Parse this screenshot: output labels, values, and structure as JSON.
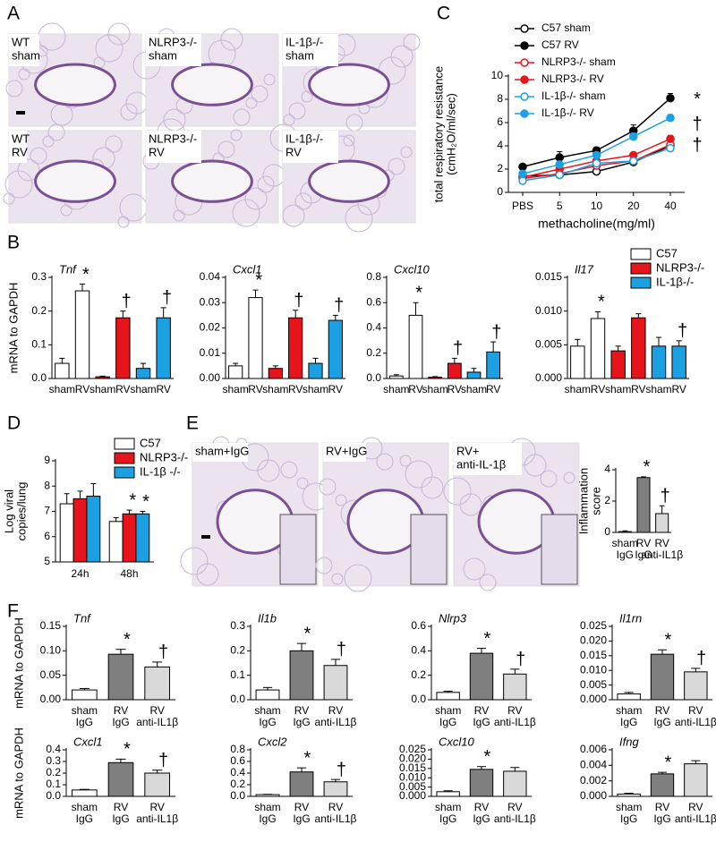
{
  "panel_labels": [
    "A",
    "B",
    "C",
    "D",
    "E",
    "F"
  ],
  "histology_A": [
    [
      "WT",
      "sham"
    ],
    [
      "NLRP3-/-",
      "sham"
    ],
    [
      "IL-1β-/-",
      "sham"
    ],
    [
      "WT",
      "RV"
    ],
    [
      "NLRP3-/-",
      "RV"
    ],
    [
      "IL-1β-/-",
      "RV"
    ]
  ],
  "histology_E": [
    [
      "sham+IgG"
    ],
    [
      "RV+IgG"
    ],
    [
      "RV+",
      "anti-IL-1β"
    ]
  ],
  "chart_data": [
    {
      "type": "line",
      "xlabel": "methacholine(mg/ml)",
      "ylabel": [
        "total respiratory resistance",
        "(cmH₂O/ml/sec)"
      ],
      "categories": [
        "PBS",
        "5",
        "10",
        "20",
        "40"
      ],
      "ylim": [
        0,
        10
      ],
      "yticks": [
        0,
        2,
        4,
        6,
        8,
        10
      ],
      "series": [
        {
          "name": "C57 sham",
          "color": "#000000",
          "filled": false,
          "values": [
            1.4,
            1.5,
            1.8,
            2.6,
            4.0
          ],
          "errors": [
            0.1,
            0.1,
            0.1,
            0.2,
            0.2
          ]
        },
        {
          "name": "C57 RV",
          "color": "#000000",
          "filled": true,
          "values": [
            2.2,
            3.0,
            3.6,
            5.3,
            8.1
          ],
          "errors": [
            0.1,
            0.5,
            0.3,
            0.5,
            0.4
          ],
          "end_label": "*"
        },
        {
          "name": "NLRP3-/- sham",
          "color": "#e8141b",
          "filled": false,
          "values": [
            1.2,
            1.6,
            2.3,
            2.7,
            4.1
          ],
          "errors": [
            0.1,
            0.1,
            0.2,
            0.2,
            0.2
          ]
        },
        {
          "name": "NLRP3-/- RV",
          "color": "#e8141b",
          "filled": true,
          "values": [
            1.3,
            2.0,
            2.7,
            3.2,
            4.6
          ],
          "errors": [
            0.1,
            0.2,
            0.2,
            0.2,
            0.3
          ],
          "end_label": "†"
        },
        {
          "name": "IL-1β-/- sham",
          "color": "#1ba1e2",
          "filled": false,
          "values": [
            1.0,
            1.5,
            2.5,
            2.7,
            3.8
          ],
          "errors": [
            0.1,
            0.1,
            0.2,
            0.2,
            0.2
          ]
        },
        {
          "name": "IL-1β-/- RV",
          "color": "#1ba1e2",
          "filled": true,
          "values": [
            1.6,
            2.4,
            3.2,
            4.8,
            6.4
          ],
          "errors": [
            0.1,
            0.2,
            0.2,
            0.3,
            0.3
          ],
          "end_label": "†"
        }
      ]
    },
    {
      "type": "bar",
      "title": "Tnf",
      "ylabel": "mRNA to GAPDH",
      "categories": [
        "sham",
        "RV",
        "sham",
        "RV",
        "sham",
        "RV"
      ],
      "colors": [
        "#ffffff",
        "#ffffff",
        "#e8141b",
        "#e8141b",
        "#1ba1e2",
        "#1ba1e2"
      ],
      "values": [
        0.045,
        0.26,
        0.005,
        0.18,
        0.03,
        0.18
      ],
      "errors": [
        0.015,
        0.02,
        0.002,
        0.02,
        0.015,
        0.03
      ],
      "bar_labels": [
        null,
        "*",
        null,
        "†",
        null,
        "†"
      ],
      "ylim": [
        0,
        0.3
      ],
      "yticks": [
        {
          "value": 0,
          "label": "0.0"
        },
        0.1,
        0.2,
        0.3
      ]
    },
    {
      "type": "bar",
      "title": "Cxcl1",
      "categories": [
        "sham",
        "RV",
        "sham",
        "RV",
        "sham",
        "RV"
      ],
      "colors": [
        "#ffffff",
        "#ffffff",
        "#e8141b",
        "#e8141b",
        "#1ba1e2",
        "#1ba1e2"
      ],
      "values": [
        0.005,
        0.032,
        0.004,
        0.024,
        0.006,
        0.023
      ],
      "errors": [
        0.001,
        0.003,
        0.001,
        0.003,
        0.002,
        0.002
      ],
      "bar_labels": [
        null,
        "*",
        null,
        "†",
        null,
        "†"
      ],
      "ylim": [
        0,
        0.04
      ],
      "yticks": [
        {
          "value": 0,
          "label": "0.00"
        },
        0.01,
        0.02,
        0.03,
        0.04
      ]
    },
    {
      "type": "bar",
      "title": "Cxcl10",
      "categories": [
        "sham",
        "RV",
        "sham",
        "RV",
        "sham",
        "RV"
      ],
      "colors": [
        "#ffffff",
        "#ffffff",
        "#e8141b",
        "#e8141b",
        "#1ba1e2",
        "#1ba1e2"
      ],
      "values": [
        0.02,
        0.5,
        0.01,
        0.12,
        0.05,
        0.21
      ],
      "errors": [
        0.01,
        0.1,
        0.005,
        0.04,
        0.03,
        0.08
      ],
      "bar_labels": [
        null,
        "*",
        null,
        "†",
        null,
        "†"
      ],
      "ylim": [
        0,
        0.8
      ],
      "yticks": [
        {
          "value": 0,
          "label": "0.0"
        },
        0.2,
        0.4,
        0.6,
        0.8
      ]
    },
    {
      "type": "bar",
      "title": "Il17",
      "categories": [
        "sham",
        "RV",
        "sham",
        "RV",
        "sham",
        "RV"
      ],
      "colors": [
        "#ffffff",
        "#ffffff",
        "#e8141b",
        "#e8141b",
        "#1ba1e2",
        "#1ba1e2"
      ],
      "values": [
        0.0048,
        0.0089,
        0.0041,
        0.009,
        0.0048,
        0.0048
      ],
      "errors": [
        0.001,
        0.001,
        0.0007,
        0.0006,
        0.0013,
        0.0008
      ],
      "bar_labels": [
        null,
        "*",
        null,
        null,
        null,
        "†"
      ],
      "ylim": [
        0,
        0.015
      ],
      "yticks": [
        {
          "value": 0,
          "label": "0.000"
        },
        {
          "value": 0.005,
          "label": "0.005"
        },
        {
          "value": 0.01,
          "label": "0.010"
        },
        {
          "value": 0.015,
          "label": "0.015"
        }
      ],
      "legend": [
        {
          "name": "C57",
          "color": "#ffffff"
        },
        {
          "name": "NLRP3-/-",
          "color": "#e8141b"
        },
        {
          "name": "IL-1β-/-",
          "color": "#1ba1e2"
        }
      ]
    },
    {
      "type": "grouped_bar",
      "ylabel": [
        "Log viral",
        "copies/lung"
      ],
      "categories": [
        "24h",
        "48h"
      ],
      "ylim": [
        5,
        9
      ],
      "yticks": [
        5,
        6,
        7,
        8,
        9
      ],
      "series": [
        {
          "name": "C57",
          "color": "#ffffff",
          "values": [
            7.3,
            6.6
          ],
          "errors": [
            0.4,
            0.15
          ]
        },
        {
          "name": "NLRP3-/-",
          "color": "#e8141b",
          "values": [
            7.5,
            6.9
          ],
          "errors": [
            0.3,
            0.15
          ],
          "bar_labels": [
            null,
            "*"
          ]
        },
        {
          "name": "IL-1β -/-",
          "color": "#1ba1e2",
          "values": [
            7.6,
            6.9
          ],
          "errors": [
            0.5,
            0.1
          ],
          "bar_labels": [
            null,
            "*"
          ]
        }
      ]
    },
    {
      "type": "bar",
      "ylabel": [
        "Inflammation",
        "score"
      ],
      "categories": [
        [
          "sham",
          "IgG"
        ],
        [
          "RV",
          "IgG"
        ],
        [
          "RV",
          "anti-IL1β"
        ]
      ],
      "colors": [
        "#ffffff",
        "#7f7f7f",
        "#d9d9d9"
      ],
      "values": [
        0.05,
        3.5,
        1.2
      ],
      "errors": [
        0.05,
        0.05,
        0.5
      ],
      "bar_labels": [
        null,
        "*",
        "†"
      ],
      "ylim": [
        0,
        4
      ],
      "yticks": [
        0,
        2,
        4
      ]
    },
    {
      "type": "bar",
      "title": "Tnf",
      "ylabel": "mRNA to GAPDH",
      "categories": [
        [
          "sham",
          "IgG"
        ],
        [
          "RV",
          "IgG"
        ],
        [
          "RV",
          "anti-IL1β"
        ]
      ],
      "colors": [
        "#ffffff",
        "#7f7f7f",
        "#d9d9d9"
      ],
      "values": [
        0.02,
        0.093,
        0.067
      ],
      "errors": [
        0.003,
        0.01,
        0.01
      ],
      "bar_labels": [
        null,
        "*",
        "†"
      ],
      "ylim": [
        0,
        0.15
      ],
      "yticks": [
        {
          "value": 0,
          "label": "0.00"
        },
        0.05,
        {
          "value": 0.1,
          "label": "0.10"
        },
        0.15
      ]
    },
    {
      "type": "bar",
      "title": "Il1b",
      "categories": [
        [
          "sham",
          "IgG"
        ],
        [
          "RV",
          "IgG"
        ],
        [
          "RV",
          "anti-IL1β"
        ]
      ],
      "colors": [
        "#ffffff",
        "#7f7f7f",
        "#d9d9d9"
      ],
      "values": [
        0.04,
        0.2,
        0.14
      ],
      "errors": [
        0.01,
        0.03,
        0.025
      ],
      "bar_labels": [
        null,
        "*",
        "†"
      ],
      "ylim": [
        0,
        0.3
      ],
      "yticks": [
        {
          "value": 0,
          "label": "0.0"
        },
        0.1,
        0.2,
        0.3
      ]
    },
    {
      "type": "bar",
      "title": "Nlrp3",
      "categories": [
        [
          "sham",
          "IgG"
        ],
        [
          "RV",
          "IgG"
        ],
        [
          "RV",
          "anti-IL1β"
        ]
      ],
      "colors": [
        "#ffffff",
        "#7f7f7f",
        "#d9d9d9"
      ],
      "values": [
        0.06,
        0.38,
        0.21
      ],
      "errors": [
        0.01,
        0.04,
        0.04
      ],
      "bar_labels": [
        null,
        "*",
        "†"
      ],
      "ylim": [
        0,
        0.6
      ],
      "yticks": [
        {
          "value": 0,
          "label": "0.0"
        },
        0.2,
        0.4,
        0.6
      ]
    },
    {
      "type": "bar",
      "title": "Il1rn",
      "categories": [
        [
          "sham",
          "IgG"
        ],
        [
          "RV",
          "IgG"
        ],
        [
          "RV",
          "anti-IL1β"
        ]
      ],
      "colors": [
        "#ffffff",
        "#7f7f7f",
        "#d9d9d9"
      ],
      "values": [
        0.002,
        0.0155,
        0.0095
      ],
      "errors": [
        0.0005,
        0.0015,
        0.0012
      ],
      "bar_labels": [
        null,
        "*",
        "†"
      ],
      "ylim": [
        0,
        0.025
      ],
      "yticks": [
        {
          "value": 0,
          "label": "0.000"
        },
        {
          "value": 0.005,
          "label": "0.005"
        },
        {
          "value": 0.01,
          "label": "0.010"
        },
        {
          "value": 0.015,
          "label": "0.015"
        },
        {
          "value": 0.02,
          "label": "0.020"
        },
        {
          "value": 0.025,
          "label": "0.025"
        }
      ]
    },
    {
      "type": "bar",
      "title": "Cxcl1",
      "ylabel": "mRNA to GAPDH",
      "categories": [
        [
          "sham",
          "IgG"
        ],
        [
          "RV",
          "IgG"
        ],
        [
          "RV",
          "anti-IL1β"
        ]
      ],
      "colors": [
        "#ffffff",
        "#7f7f7f",
        "#d9d9d9"
      ],
      "values": [
        0.055,
        0.29,
        0.2
      ],
      "errors": [
        0.005,
        0.03,
        0.025
      ],
      "bar_labels": [
        null,
        "*",
        "†"
      ],
      "ylim": [
        0,
        0.4
      ],
      "yticks": [
        {
          "value": 0,
          "label": "0.0"
        },
        0.1,
        0.2,
        0.3,
        0.4
      ]
    },
    {
      "type": "bar",
      "title": "Cxcl2",
      "categories": [
        [
          "sham",
          "IgG"
        ],
        [
          "RV",
          "IgG"
        ],
        [
          "RV",
          "anti-IL1β"
        ]
      ],
      "colors": [
        "#ffffff",
        "#7f7f7f",
        "#d9d9d9"
      ],
      "values": [
        0.03,
        0.42,
        0.25
      ],
      "errors": [
        0.005,
        0.07,
        0.04
      ],
      "bar_labels": [
        null,
        "*",
        "†"
      ],
      "ylim": [
        0,
        0.8
      ],
      "yticks": [
        {
          "value": 0,
          "label": "0.0"
        },
        0.2,
        0.4,
        0.6,
        0.8
      ]
    },
    {
      "type": "bar",
      "title": "Cxcl10",
      "categories": [
        [
          "sham",
          "IgG"
        ],
        [
          "RV",
          "IgG"
        ],
        [
          "RV",
          "anti-IL1β"
        ]
      ],
      "colors": [
        "#ffffff",
        "#7f7f7f",
        "#d9d9d9"
      ],
      "values": [
        0.0025,
        0.0145,
        0.0135
      ],
      "errors": [
        0.0005,
        0.0015,
        0.002
      ],
      "bar_labels": [
        null,
        "*",
        null
      ],
      "ylim": [
        0,
        0.025
      ],
      "yticks": [
        {
          "value": 0,
          "label": "0.000"
        },
        {
          "value": 0.005,
          "label": "0.005"
        },
        {
          "value": 0.01,
          "label": "0.010"
        },
        {
          "value": 0.015,
          "label": "0.015"
        },
        {
          "value": 0.02,
          "label": "0.020"
        },
        {
          "value": 0.025,
          "label": "0.025"
        }
      ]
    },
    {
      "type": "bar",
      "title": "Ifng",
      "categories": [
        [
          "sham",
          "IgG"
        ],
        [
          "RV",
          "IgG"
        ],
        [
          "RV",
          "anti-IL1β"
        ]
      ],
      "colors": [
        "#ffffff",
        "#7f7f7f",
        "#d9d9d9"
      ],
      "values": [
        0.0003,
        0.0029,
        0.0042
      ],
      "errors": [
        0.0001,
        0.0002,
        0.0004
      ],
      "bar_labels": [
        null,
        "*",
        null
      ],
      "ylim": [
        0,
        0.006
      ],
      "yticks": [
        {
          "value": 0,
          "label": "0.000"
        },
        {
          "value": 0.002,
          "label": "0.002"
        },
        {
          "value": 0.004,
          "label": "0.004"
        },
        {
          "value": 0.006,
          "label": "0.006"
        }
      ]
    }
  ]
}
